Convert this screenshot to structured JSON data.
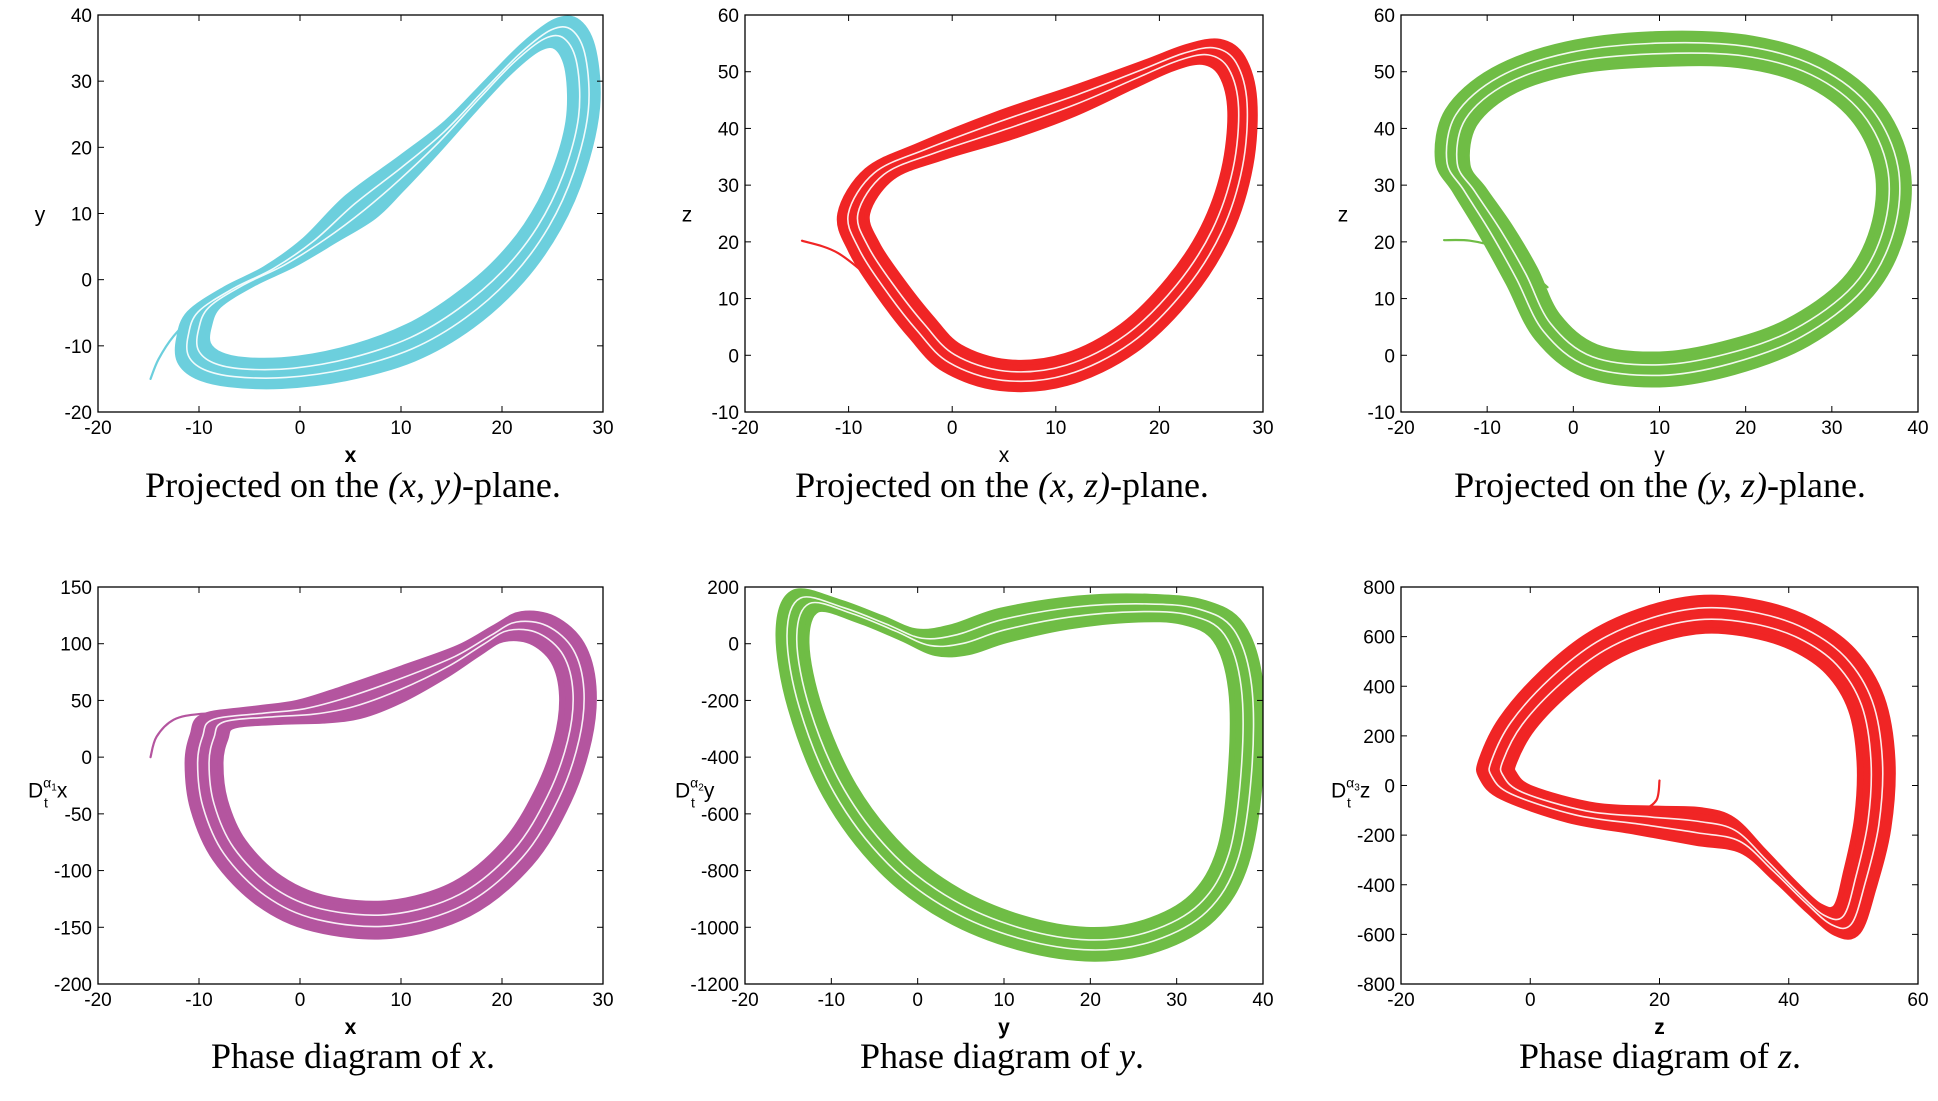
{
  "chart_data": [
    {
      "type": "line",
      "id": "xy",
      "caption": {
        "prefix": "Projected on the ",
        "math": "(x, y)",
        "suffix": "-plane."
      },
      "xlabel": "x",
      "ylabel": "y",
      "xlabel_bold": true,
      "xlim": [
        -20,
        30
      ],
      "ylim": [
        -20,
        40
      ],
      "xticks": [
        -20,
        -10,
        0,
        10,
        20,
        30
      ],
      "yticks": [
        -20,
        -10,
        0,
        10,
        20,
        30,
        40
      ],
      "color": "#6ccfdd",
      "band_width": 6.5,
      "series": [
        {
          "name": "transient",
          "points": [
            [
              -14.8,
              -15
            ],
            [
              -14,
              -12
            ],
            [
              -12.5,
              -8.5
            ],
            [
              -10.5,
              -5.5
            ],
            [
              -8.5,
              -3.5
            ]
          ],
          "thin": true
        },
        {
          "name": "attractor",
          "closed": true,
          "points": [
            [
              -9.5,
              -4.5
            ],
            [
              -6,
              -1
            ],
            [
              -2,
              2
            ],
            [
              2,
              6
            ],
            [
              6,
              11
            ],
            [
              10,
              16
            ],
            [
              14,
              21.5
            ],
            [
              18,
              28
            ],
            [
              21.5,
              33.5
            ],
            [
              24.5,
              37
            ],
            [
              26.5,
              37
            ],
            [
              27.8,
              33
            ],
            [
              28,
              25
            ],
            [
              26.5,
              16
            ],
            [
              24,
              8
            ],
            [
              20.5,
              1
            ],
            [
              16,
              -5
            ],
            [
              11,
              -9.5
            ],
            [
              5,
              -12.5
            ],
            [
              -1,
              -14
            ],
            [
              -6,
              -14
            ],
            [
              -9,
              -13
            ],
            [
              -10.5,
              -11
            ],
            [
              -10.5,
              -8
            ]
          ]
        }
      ]
    },
    {
      "type": "line",
      "id": "xz",
      "caption": {
        "prefix": "Projected on the ",
        "math": "(x, z)",
        "suffix": "-plane."
      },
      "xlabel": "x",
      "ylabel": "z",
      "xlabel_bold": false,
      "xlim": [
        -20,
        30
      ],
      "ylim": [
        -10,
        60
      ],
      "xticks": [
        -20,
        -10,
        0,
        10,
        20,
        30
      ],
      "yticks": [
        -10,
        0,
        10,
        20,
        30,
        40,
        50,
        60
      ],
      "color": "#f02525",
      "band_width": 5.5,
      "series": [
        {
          "name": "transient",
          "points": [
            [
              -14.5,
              20.2
            ],
            [
              -11,
              18
            ],
            [
              -7,
              12
            ],
            [
              -4,
              6
            ],
            [
              -2,
              1
            ]
          ],
          "thin": true
        },
        {
          "name": "attractor",
          "closed": true,
          "points": [
            [
              -9.5,
              25
            ],
            [
              -7,
              32
            ],
            [
              -2,
              36
            ],
            [
              5,
              40.5
            ],
            [
              12,
              45
            ],
            [
              18,
              49.5
            ],
            [
              22,
              52.5
            ],
            [
              25,
              53.5
            ],
            [
              27,
              51
            ],
            [
              28,
              44
            ],
            [
              27.5,
              33
            ],
            [
              25.5,
              22
            ],
            [
              22,
              12
            ],
            [
              17,
              3
            ],
            [
              11,
              -2.5
            ],
            [
              5,
              -3.5
            ],
            [
              0,
              -0.5
            ],
            [
              -3,
              5
            ],
            [
              -6,
              12
            ],
            [
              -8.5,
              19
            ]
          ]
        }
      ]
    },
    {
      "type": "line",
      "id": "yz",
      "caption": {
        "prefix": "Projected on the ",
        "math": "(y, z)",
        "suffix": "-plane."
      },
      "xlabel": "y",
      "ylabel": "z",
      "xlabel_bold": false,
      "xlim": [
        -20,
        40
      ],
      "ylim": [
        -10,
        60
      ],
      "xticks": [
        -20,
        -10,
        0,
        10,
        20,
        30,
        40
      ],
      "yticks": [
        -10,
        0,
        10,
        20,
        30,
        40,
        50,
        60
      ],
      "color": "#6fbd45",
      "band_width": 6,
      "series": [
        {
          "name": "transient",
          "points": [
            [
              -15,
              20.3
            ],
            [
              -12,
              20.2
            ],
            [
              -9,
              19
            ],
            [
              -6,
              16
            ],
            [
              -3,
              12
            ]
          ],
          "thin": true
        },
        {
          "name": "attractor",
          "closed": true,
          "points": [
            [
              -14,
              34
            ],
            [
              -13,
              42
            ],
            [
              -8,
              48.5
            ],
            [
              0,
              52.5
            ],
            [
              10,
              54
            ],
            [
              20,
              53.5
            ],
            [
              28,
              50
            ],
            [
              34,
              43
            ],
            [
              37,
              33
            ],
            [
              36.5,
              22
            ],
            [
              33,
              12
            ],
            [
              26,
              4
            ],
            [
              18,
              -0.5
            ],
            [
              10,
              -2.5
            ],
            [
              2,
              -1
            ],
            [
              -3,
              5
            ],
            [
              -6,
              14
            ],
            [
              -9,
              22
            ],
            [
              -12,
              29
            ]
          ]
        }
      ]
    },
    {
      "type": "line",
      "id": "dx",
      "caption": {
        "prefix": "Phase diagram of ",
        "math": "x",
        "suffix": "."
      },
      "xlabel": "x",
      "ylabel": "D",
      "ylabel_sup": "α",
      "ylabel_supsub": "1",
      "ylabel_sub": "t",
      "ylabel_var": "x",
      "xlabel_bold": true,
      "xlim": [
        -20,
        30
      ],
      "ylim": [
        -200,
        150
      ],
      "xticks": [
        -20,
        -10,
        0,
        10,
        20,
        30
      ],
      "yticks": [
        -200,
        -150,
        -100,
        -50,
        0,
        50,
        100,
        150
      ],
      "color": "#b4559f",
      "band_width": 6.5,
      "series": [
        {
          "name": "transient",
          "points": [
            [
              -14.8,
              0
            ],
            [
              -14.2,
              18
            ],
            [
              -12.5,
              33
            ],
            [
              -10,
              38
            ],
            [
              -7,
              38
            ]
          ],
          "thin": true
        },
        {
          "name": "attractor",
          "closed": true,
          "points": [
            [
              -8,
              32
            ],
            [
              -3,
              37
            ],
            [
              1,
              40
            ],
            [
              5,
              48
            ],
            [
              10,
              64
            ],
            [
              15,
              84
            ],
            [
              18.5,
              103
            ],
            [
              21,
              115
            ],
            [
              24,
              112
            ],
            [
              26.5,
              92
            ],
            [
              27.5,
              58
            ],
            [
              27,
              15
            ],
            [
              25,
              -35
            ],
            [
              21.5,
              -85
            ],
            [
              16,
              -125
            ],
            [
              9,
              -143
            ],
            [
              2,
              -138
            ],
            [
              -3,
              -118
            ],
            [
              -7,
              -82
            ],
            [
              -9,
              -42
            ],
            [
              -9.5,
              -5
            ],
            [
              -9,
              18
            ]
          ]
        }
      ]
    },
    {
      "type": "line",
      "id": "dy",
      "caption": {
        "prefix": "Phase diagram of ",
        "math": "y",
        "suffix": "."
      },
      "xlabel": "y",
      "ylabel": "D",
      "ylabel_sup": "α",
      "ylabel_supsub": "2",
      "ylabel_sub": "t",
      "ylabel_var": "y",
      "xlabel_bold": true,
      "xlim": [
        -20,
        40
      ],
      "ylim": [
        -1200,
        200
      ],
      "xticks": [
        -20,
        -10,
        0,
        10,
        20,
        30,
        40
      ],
      "yticks": [
        -1200,
        -1000,
        -800,
        -600,
        -400,
        -200,
        0,
        200
      ],
      "color": "#6fbd45",
      "band_width": 6,
      "series": [
        {
          "name": "attractor",
          "closed": true,
          "points": [
            [
              -13,
              150
            ],
            [
              -8,
              115
            ],
            [
              -3,
              55
            ],
            [
              1,
              5
            ],
            [
              5,
              15
            ],
            [
              10,
              65
            ],
            [
              18,
              110
            ],
            [
              26,
              125
            ],
            [
              32,
              110
            ],
            [
              36,
              40
            ],
            [
              38,
              -150
            ],
            [
              38,
              -450
            ],
            [
              36.5,
              -750
            ],
            [
              33,
              -930
            ],
            [
              27,
              -1030
            ],
            [
              20,
              -1060
            ],
            [
              12,
              -1020
            ],
            [
              4,
              -920
            ],
            [
              -3,
              -760
            ],
            [
              -9,
              -520
            ],
            [
              -13,
              -230
            ],
            [
              -14.5,
              20
            ]
          ]
        }
      ]
    },
    {
      "type": "line",
      "id": "dz",
      "caption": {
        "prefix": "Phase diagram of ",
        "math": "z",
        "suffix": "."
      },
      "xlabel": "z",
      "ylabel": "D",
      "ylabel_sup": "α",
      "ylabel_supsub": "3",
      "ylabel_sub": "t",
      "ylabel_var": "z",
      "xlabel_bold": true,
      "xlim": [
        -20,
        60
      ],
      "ylim": [
        -800,
        800
      ],
      "xticks": [
        -20,
        0,
        20,
        40,
        60
      ],
      "yticks": [
        -800,
        -600,
        -400,
        -200,
        0,
        200,
        400,
        600,
        800
      ],
      "color": "#f02525",
      "band_width": 6.5,
      "series": [
        {
          "name": "transient",
          "points": [
            [
              20,
              20
            ],
            [
              19.5,
              -60
            ],
            [
              17,
              -100
            ],
            [
              12,
              -110
            ],
            [
              5,
              -100
            ]
          ],
          "thin": true
        },
        {
          "name": "attractor",
          "closed": true,
          "points": [
            [
              -5,
              100
            ],
            [
              -2,
              250
            ],
            [
              4,
              420
            ],
            [
              11,
              560
            ],
            [
              19,
              650
            ],
            [
              27,
              690
            ],
            [
              35,
              670
            ],
            [
              42,
              610
            ],
            [
              48,
              500
            ],
            [
              52,
              330
            ],
            [
              53.5,
              100
            ],
            [
              53,
              -150
            ],
            [
              51,
              -380
            ],
            [
              49,
              -540
            ],
            [
              46,
              -540
            ],
            [
              42,
              -450
            ],
            [
              37,
              -320
            ],
            [
              32,
              -200
            ],
            [
              26,
              -165
            ],
            [
              18,
              -140
            ],
            [
              8,
              -110
            ],
            [
              -2,
              -30
            ],
            [
              -5,
              40
            ]
          ]
        }
      ]
    }
  ]
}
